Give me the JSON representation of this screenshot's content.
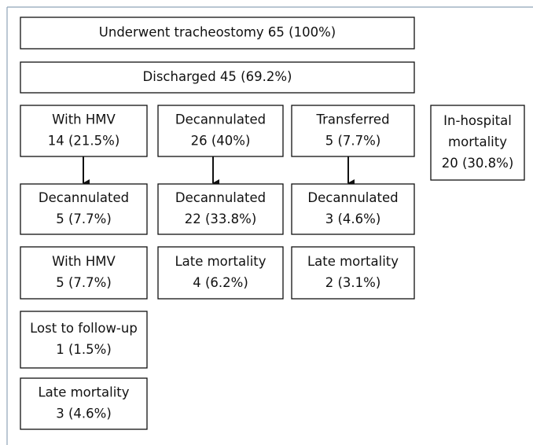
{
  "nodes": [
    {
      "lines": [
        "Underwent tracheostomy 65 (100%)"
      ]
    },
    {
      "lines": [
        "Discharged 45 (69.2%)"
      ]
    },
    {
      "lines": [
        "With HMV",
        "14 (21.5%)"
      ]
    },
    {
      "lines": [
        "Decannulated",
        "26 (40%)"
      ]
    },
    {
      "lines": [
        "Transferred",
        "5 (7.7%)"
      ]
    },
    {
      "lines": [
        "In-hospital",
        "mortality",
        "20 (30.8%)"
      ]
    },
    {
      "lines": [
        "Decannulated",
        "5 (7.7%)"
      ]
    },
    {
      "lines": [
        "Decannulated",
        "22 (33.8%)"
      ]
    },
    {
      "lines": [
        "Decannulated",
        "3 (4.6%)"
      ]
    },
    {
      "lines": [
        "With HMV",
        "5 (7.7%)"
      ]
    },
    {
      "lines": [
        "Late mortality",
        "4 (6.2%)"
      ]
    },
    {
      "lines": [
        "Late mortality",
        "2 (3.1%)"
      ]
    },
    {
      "lines": [
        "Lost to follow-up",
        "1 (1.5%)"
      ]
    },
    {
      "lines": [
        "Late mortality",
        "3 (4.6%)"
      ]
    }
  ]
}
